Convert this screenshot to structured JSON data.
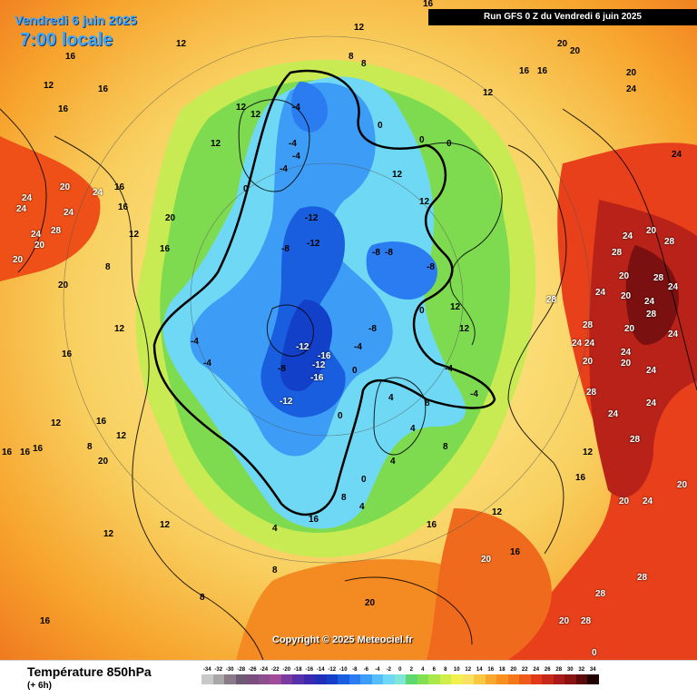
{
  "header": {
    "date": "Vendredi 6 juin 2025",
    "hour": "7:00 locale",
    "run": "Run GFS 0 Z du Vendredi 6 juin 2025"
  },
  "copyright": "Copyright © 2025 Meteociel.fr",
  "footer": {
    "title": "Température 850hPa",
    "subtitle": "(+ 6h)"
  },
  "legend": {
    "ticks": [
      "-34",
      "-32",
      "-30",
      "-28",
      "-26",
      "-24",
      "-22",
      "-20",
      "-18",
      "-16",
      "-14",
      "-12",
      "-10",
      "-8",
      "-6",
      "-4",
      "-2",
      "0",
      "2",
      "4",
      "6",
      "8",
      "10",
      "12",
      "14",
      "16",
      "18",
      "20",
      "22",
      "24",
      "26",
      "28",
      "30",
      "32",
      "34"
    ],
    "colors": [
      "#c8c8c8",
      "#a8a8a8",
      "#8a7a8a",
      "#6e5a72",
      "#7a4f80",
      "#8e4e8e",
      "#a04a9a",
      "#7a3aa0",
      "#5a30a8",
      "#3a2ab0",
      "#1f2fb8",
      "#1240c8",
      "#1a5ee0",
      "#2a7cf0",
      "#3c9cf6",
      "#55bdf8",
      "#6fd8f4",
      "#80e6d8",
      "#60d870",
      "#80e050",
      "#a8e84a",
      "#d0ee4a",
      "#f0f050",
      "#f8e060",
      "#f8c840",
      "#f8a830",
      "#f89020",
      "#f47818",
      "#ee5a18",
      "#e03a18",
      "#c82818",
      "#aa1a18",
      "#8a1210",
      "#5a0a0a",
      "#200000"
    ]
  },
  "map_labels": [
    {
      "t": "16",
      "c": "black"
    },
    {
      "t": "12",
      "c": "black"
    },
    {
      "t": "12",
      "c": "black"
    },
    {
      "t": "8",
      "c": "black"
    },
    {
      "t": "8",
      "c": "black"
    },
    {
      "t": "20",
      "c": "black"
    },
    {
      "t": "20",
      "c": "black"
    },
    {
      "t": "20",
      "c": "black"
    },
    {
      "t": "24",
      "c": "black"
    },
    {
      "t": "24",
      "c": "black"
    },
    {
      "t": "16",
      "c": "black"
    },
    {
      "t": "16",
      "c": "black"
    },
    {
      "t": "16",
      "c": "black"
    },
    {
      "t": "12",
      "c": "black"
    },
    {
      "t": "12",
      "c": "black"
    },
    {
      "t": "12",
      "c": "black"
    },
    {
      "t": "12",
      "c": "black"
    },
    {
      "t": "16",
      "c": "black"
    },
    {
      "t": "16",
      "c": "black"
    },
    {
      "t": "12",
      "c": "black"
    },
    {
      "t": "-4",
      "c": "black"
    },
    {
      "t": "-4",
      "c": "black"
    },
    {
      "t": "-4",
      "c": "black"
    },
    {
      "t": "-4",
      "c": "black"
    },
    {
      "t": "0",
      "c": "black"
    },
    {
      "t": "0",
      "c": "black"
    },
    {
      "t": "0",
      "c": "black"
    },
    {
      "t": "0",
      "c": "black"
    },
    {
      "t": "12",
      "c": "black"
    },
    {
      "t": "12",
      "c": "black"
    },
    {
      "t": "16",
      "c": "black"
    },
    {
      "t": "16",
      "c": "black"
    },
    {
      "t": "12",
      "c": "black"
    },
    {
      "t": "24",
      "c": "black"
    },
    {
      "t": "24",
      "c": "black"
    },
    {
      "t": "20",
      "c": "black"
    },
    {
      "t": "24",
      "c": "black"
    },
    {
      "t": "20",
      "c": "black"
    },
    {
      "t": "28",
      "c": "black"
    },
    {
      "t": "20",
      "c": "black"
    },
    {
      "t": "24",
      "c": "black"
    },
    {
      "t": "24",
      "c": "black"
    },
    {
      "t": "20",
      "c": "black"
    },
    {
      "t": "16",
      "c": "black"
    },
    {
      "t": "20",
      "c": "black"
    },
    {
      "t": "8",
      "c": "black"
    },
    {
      "t": "12",
      "c": "black"
    },
    {
      "t": "16",
      "c": "black"
    },
    {
      "t": "16",
      "c": "black"
    },
    {
      "t": "12",
      "c": "black"
    },
    {
      "t": "-12",
      "c": "black"
    },
    {
      "t": "-12",
      "c": "black"
    },
    {
      "t": "-8",
      "c": "black"
    },
    {
      "t": "-8",
      "c": "black"
    },
    {
      "t": "-8",
      "c": "black"
    },
    {
      "t": "-8",
      "c": "black"
    },
    {
      "t": "-12",
      "c": "black"
    },
    {
      "t": "-16",
      "c": "black"
    },
    {
      "t": "-12",
      "c": "black"
    },
    {
      "t": "-16",
      "c": "black"
    },
    {
      "t": "-12",
      "c": "black"
    },
    {
      "t": "-8",
      "c": "black"
    },
    {
      "t": "-4",
      "c": "black"
    },
    {
      "t": "-4",
      "c": "black"
    },
    {
      "t": "-4",
      "c": "black"
    },
    {
      "t": "-8",
      "c": "black"
    },
    {
      "t": "0",
      "c": "black"
    },
    {
      "t": "0",
      "c": "black"
    },
    {
      "t": "4",
      "c": "black"
    },
    {
      "t": "8",
      "c": "black"
    },
    {
      "t": "12",
      "c": "black"
    },
    {
      "t": "12",
      "c": "black"
    },
    {
      "t": "-4",
      "c": "black"
    },
    {
      "t": "-4",
      "c": "black"
    },
    {
      "t": "0",
      "c": "black"
    },
    {
      "t": "4",
      "c": "black"
    },
    {
      "t": "4",
      "c": "black"
    },
    {
      "t": "8",
      "c": "black"
    },
    {
      "t": "12",
      "c": "black"
    },
    {
      "t": "16",
      "c": "black"
    },
    {
      "t": "20",
      "c": "black"
    },
    {
      "t": "24",
      "c": "black"
    },
    {
      "t": "28",
      "c": "black"
    },
    {
      "t": "28",
      "c": "black"
    },
    {
      "t": "28",
      "c": "black"
    },
    {
      "t": "24",
      "c": "black"
    },
    {
      "t": "24",
      "c": "black"
    },
    {
      "t": "20",
      "c": "black"
    },
    {
      "t": "20",
      "c": "black"
    },
    {
      "t": "24",
      "c": "black"
    },
    {
      "t": "28",
      "c": "black"
    },
    {
      "t": "24",
      "c": "black"
    },
    {
      "t": "28",
      "c": "black"
    },
    {
      "t": "20",
      "c": "black"
    },
    {
      "t": "24",
      "c": "black"
    },
    {
      "t": "24",
      "c": "black"
    },
    {
      "t": "20",
      "c": "black"
    },
    {
      "t": "20",
      "c": "black"
    },
    {
      "t": "24",
      "c": "black"
    },
    {
      "t": "24",
      "c": "black"
    },
    {
      "t": "28",
      "c": "black"
    },
    {
      "t": "24",
      "c": "black"
    },
    {
      "t": "24",
      "c": "black"
    },
    {
      "t": "28",
      "c": "black"
    },
    {
      "t": "24",
      "c": "black"
    },
    {
      "t": "28",
      "c": "black"
    },
    {
      "t": "28",
      "c": "black"
    },
    {
      "t": "20",
      "c": "black"
    },
    {
      "t": "20",
      "c": "black"
    },
    {
      "t": "20",
      "c": "black"
    },
    {
      "t": "16",
      "c": "black"
    },
    {
      "t": "16",
      "c": "black"
    },
    {
      "t": "16",
      "c": "black"
    },
    {
      "t": "12",
      "c": "black"
    },
    {
      "t": "12",
      "c": "black"
    },
    {
      "t": "8",
      "c": "black"
    },
    {
      "t": "8",
      "c": "black"
    },
    {
      "t": "12",
      "c": "black"
    },
    {
      "t": "16",
      "c": "black"
    },
    {
      "t": "16",
      "c": "black"
    },
    {
      "t": "16",
      "c": "black"
    },
    {
      "t": "20",
      "c": "black"
    },
    {
      "t": "8",
      "c": "black"
    },
    {
      "t": "12",
      "c": "black"
    },
    {
      "t": "16",
      "c": "black"
    },
    {
      "t": "0",
      "c": "black"
    },
    {
      "t": "4",
      "c": "black"
    },
    {
      "t": "4",
      "c": "black"
    },
    {
      "t": "8",
      "c": "black"
    },
    {
      "t": "0",
      "c": "black"
    },
    {
      "t": "20",
      "c": "black"
    },
    {
      "t": "20",
      "c": "black"
    },
    {
      "t": "28",
      "c": "black"
    },
    {
      "t": "28",
      "c": "black"
    },
    {
      "t": "20",
      "c": "black"
    }
  ]
}
